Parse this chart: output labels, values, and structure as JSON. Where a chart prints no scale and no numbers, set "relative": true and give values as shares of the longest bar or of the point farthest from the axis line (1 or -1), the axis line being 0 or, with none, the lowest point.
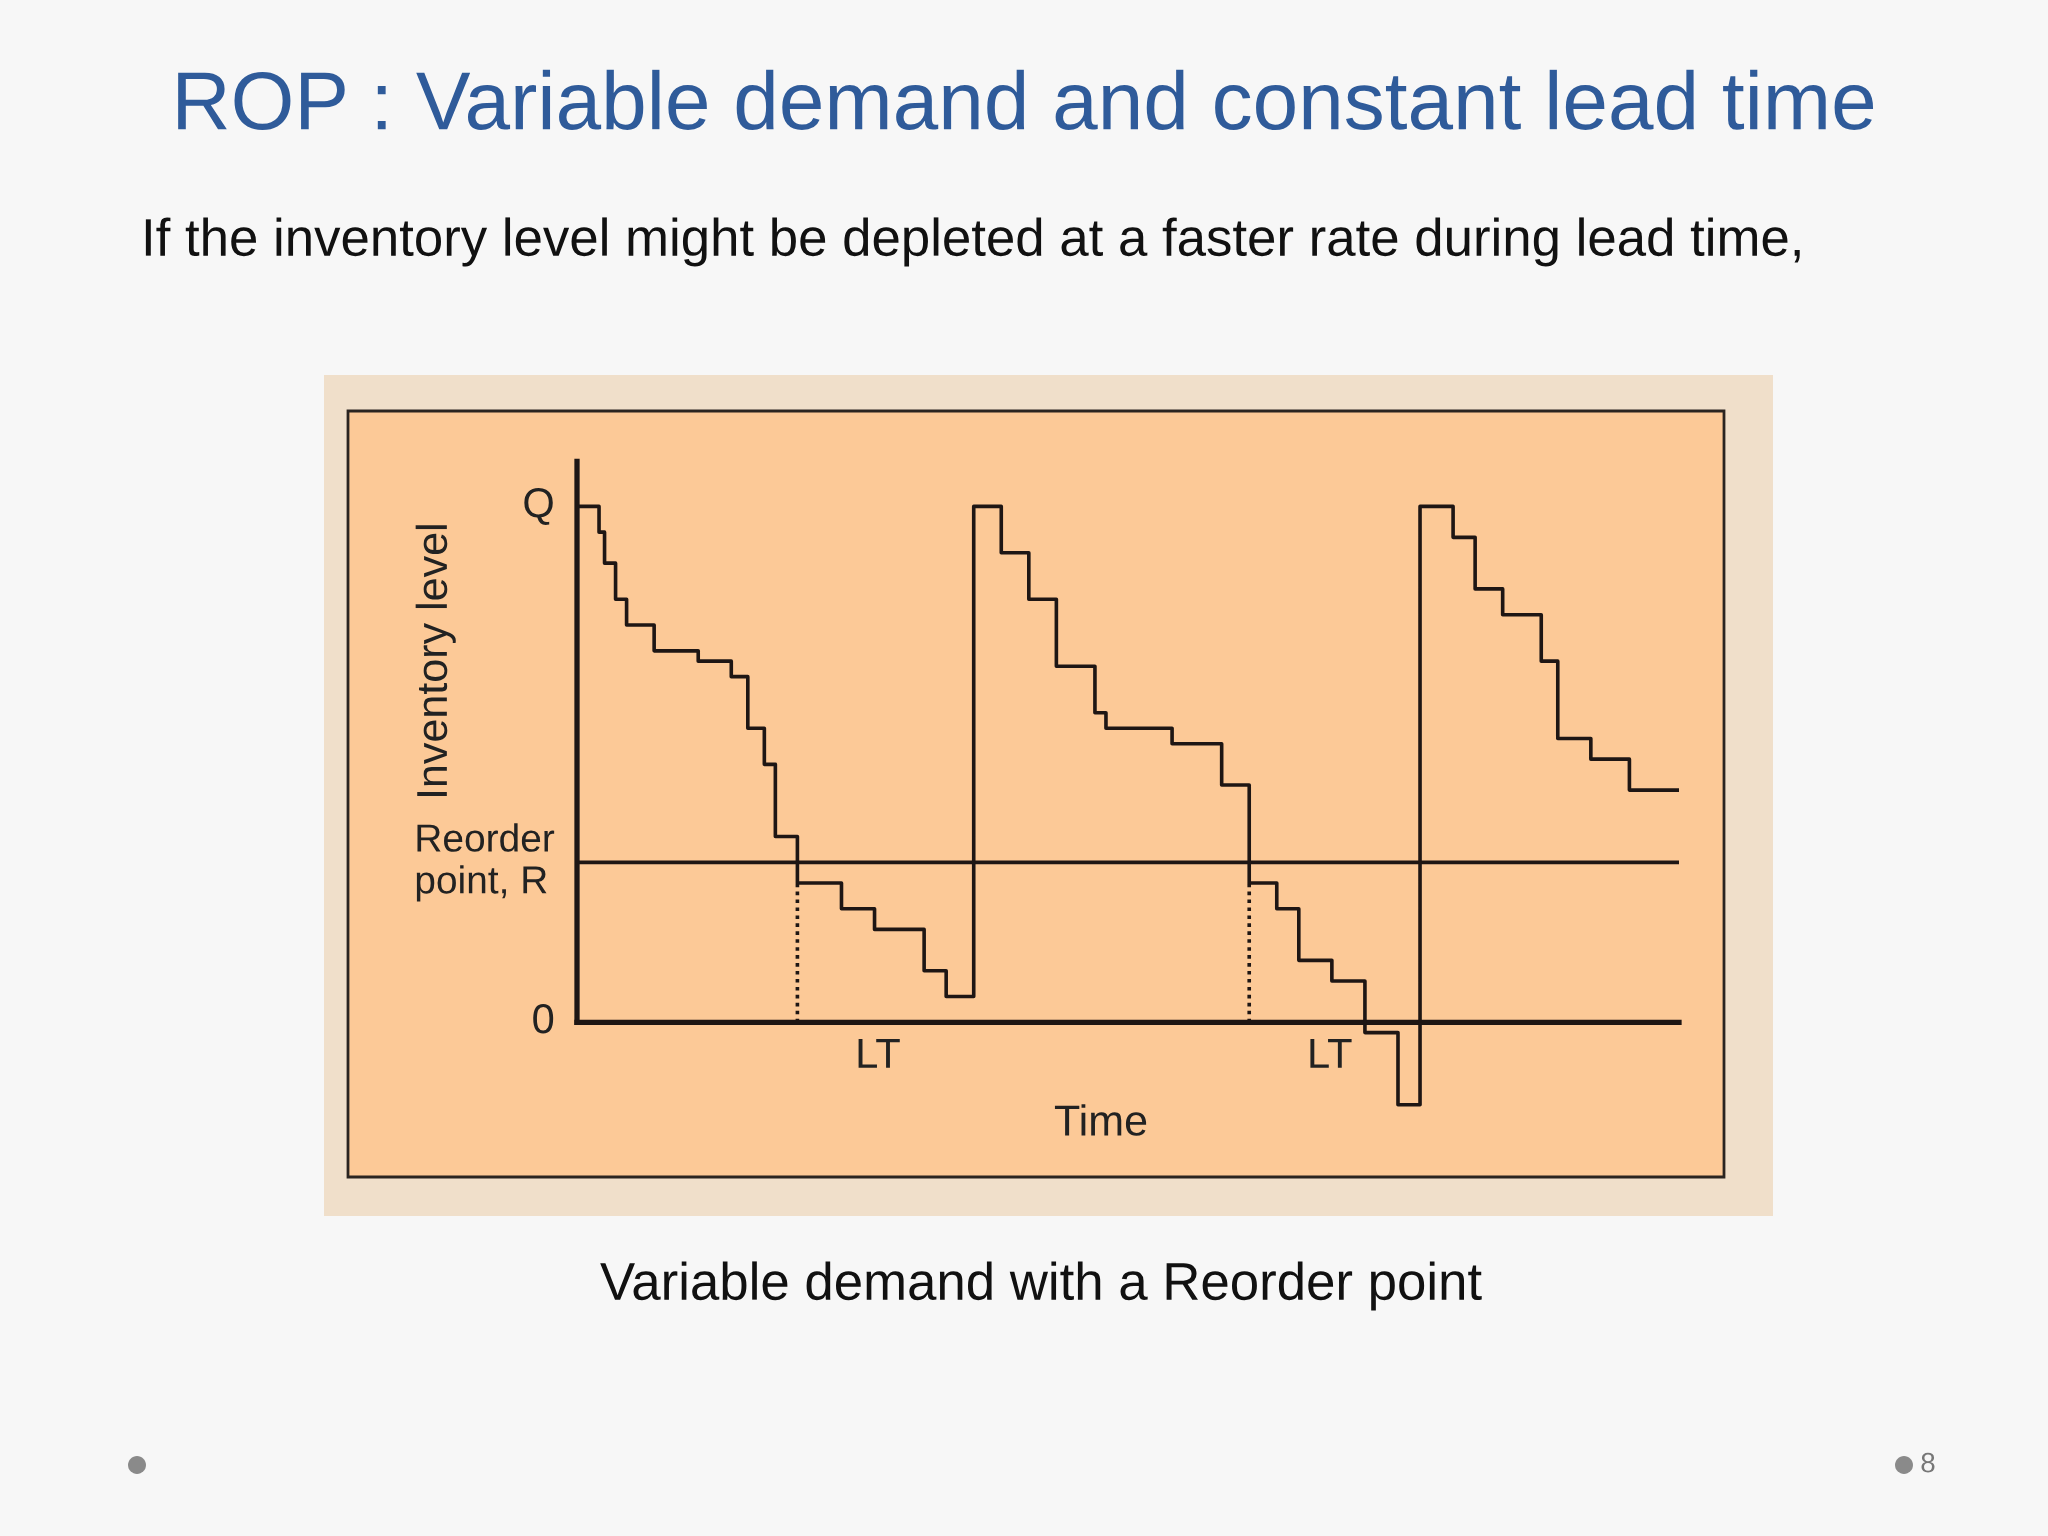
{
  "chart_data": {
    "type": "step",
    "relative": true,
    "title": "ROP : Variable demand and constant lead time",
    "subtitle": "If the inventory level might be depleted at a faster rate during lead time,",
    "xlabel": "Time",
    "ylabel": "Inventory level",
    "annotations": [
      "Q",
      "0",
      "LT",
      "LT",
      "Variable demand with a Reorder point",
      "8"
    ],
    "categories": [
      null,
      null,
      null,
      null,
      null,
      null,
      null,
      null,
      null,
      null,
      null,
      null,
      null,
      null,
      null,
      null,
      null,
      null,
      null,
      null,
      null,
      null,
      null,
      null,
      null,
      null,
      null,
      null,
      null,
      null,
      null,
      null,
      null,
      null,
      null,
      null,
      null,
      null,
      null,
      null,
      null,
      null,
      null,
      null,
      null,
      null,
      null,
      null,
      null,
      null,
      null,
      null,
      null,
      null,
      null,
      null,
      null,
      null,
      null,
      null,
      null,
      null,
      null,
      null,
      null,
      null,
      null,
      null,
      null,
      null,
      null,
      null,
      null,
      null,
      null,
      null,
      null,
      null,
      null,
      null,
      null,
      null,
      null,
      null,
      null,
      null,
      null,
      null,
      null,
      null,
      null,
      null,
      null,
      null,
      null,
      null,
      null,
      null,
      null,
      null,
      null,
      null,
      null,
      null,
      null,
      null,
      null,
      null,
      null,
      null,
      null,
      null,
      null,
      null,
      null,
      null,
      null,
      null,
      null,
      null,
      null,
      null,
      null,
      null,
      null,
      null,
      null,
      null,
      null,
      null,
      null,
      null,
      null,
      null,
      null,
      null,
      null,
      null,
      null,
      null,
      null,
      null,
      null,
      null,
      null,
      null,
      null,
      null,
      null,
      null,
      null,
      null,
      null,
      null,
      null,
      null,
      null,
      null,
      null,
      null,
      null,
      null,
      null,
      null,
      null,
      null,
      null,
      null,
      null,
      null,
      null,
      null,
      null,
      null,
      null,
      null,
      null,
      null,
      null,
      null,
      null,
      null,
      null,
      null,
      null,
      null,
      null,
      null,
      null,
      null,
      null,
      null,
      null,
      null,
      null,
      null,
      null,
      null,
      null,
      null,
      null
    ],
    "series": [
      {
        "color": "#1e1614",
        "values": [
          1,
          1,
          1,
          1,
          0.95,
          0.89,
          0.89,
          0.82,
          0.82,
          0.77,
          0.77,
          0.77,
          0.77,
          0.77,
          0.72,
          0.72,
          0.72,
          0.72,
          0.72,
          0.72,
          0.72,
          0.72,
          0.7,
          0.7,
          0.7,
          0.7,
          0.7,
          0.7,
          0.67,
          0.67,
          0.67,
          0.57,
          0.57,
          0.57,
          0.5,
          0.5,
          0.36,
          0.36,
          0.36,
          0.36,
          0.27,
          0.27,
          0.27,
          0.27,
          0.27,
          0.27,
          0.27,
          0.27,
          0.22,
          0.22,
          0.22,
          0.22,
          0.22,
          0.22,
          0.18,
          0.18,
          0.18,
          0.18,
          0.18,
          0.18,
          0.18,
          0.18,
          0.18,
          0.1,
          0.1,
          0.1,
          0.1,
          0.05,
          0.05,
          0.05,
          0.05,
          0.05,
          1,
          1,
          1,
          1,
          1,
          0.91,
          0.91,
          0.91,
          0.91,
          0.91,
          0.82,
          0.82,
          0.82,
          0.82,
          0.82,
          0.69,
          0.69,
          0.69,
          0.69,
          0.69,
          0.69,
          0.69,
          0.6,
          0.6,
          0.57,
          0.57,
          0.57,
          0.57,
          0.57,
          0.57,
          0.57,
          0.57,
          0.57,
          0.57,
          0.57,
          0.57,
          0.54,
          0.54,
          0.54,
          0.54,
          0.54,
          0.54,
          0.54,
          0.54,
          0.54,
          0.46,
          0.46,
          0.46,
          0.46,
          0.46,
          0.27,
          0.27,
          0.27,
          0.27,
          0.27,
          0.22,
          0.22,
          0.22,
          0.22,
          0.12,
          0.12,
          0.12,
          0.12,
          0.12,
          0.12,
          0.08,
          0.08,
          0.08,
          0.08,
          0.08,
          0.08,
          -0.02,
          -0.02,
          -0.02,
          -0.02,
          -0.02,
          -0.02,
          -0.16,
          -0.16,
          -0.16,
          -0.16,
          1,
          1,
          1,
          1,
          1,
          1,
          0.94,
          0.94,
          0.94,
          0.94,
          0.84,
          0.84,
          0.84,
          0.84,
          0.84,
          0.79,
          0.79,
          0.79,
          0.79,
          0.79,
          0.79,
          0.79,
          0.7,
          0.7,
          0.7,
          0.55,
          0.55,
          0.55,
          0.55,
          0.55,
          0.55,
          0.51,
          0.51,
          0.51,
          0.51,
          0.51,
          0.51,
          0.51,
          0.45,
          0.45,
          0.45,
          0.45,
          0.45,
          0.45,
          0.45,
          0.45,
          0.45,
          0.45
        ]
      }
    ],
    "ref_lines": [
      {
        "axis": "y",
        "value": 0.31,
        "label": "Reorder\npoint, R",
        "color": "#1e1614"
      }
    ]
  }
}
